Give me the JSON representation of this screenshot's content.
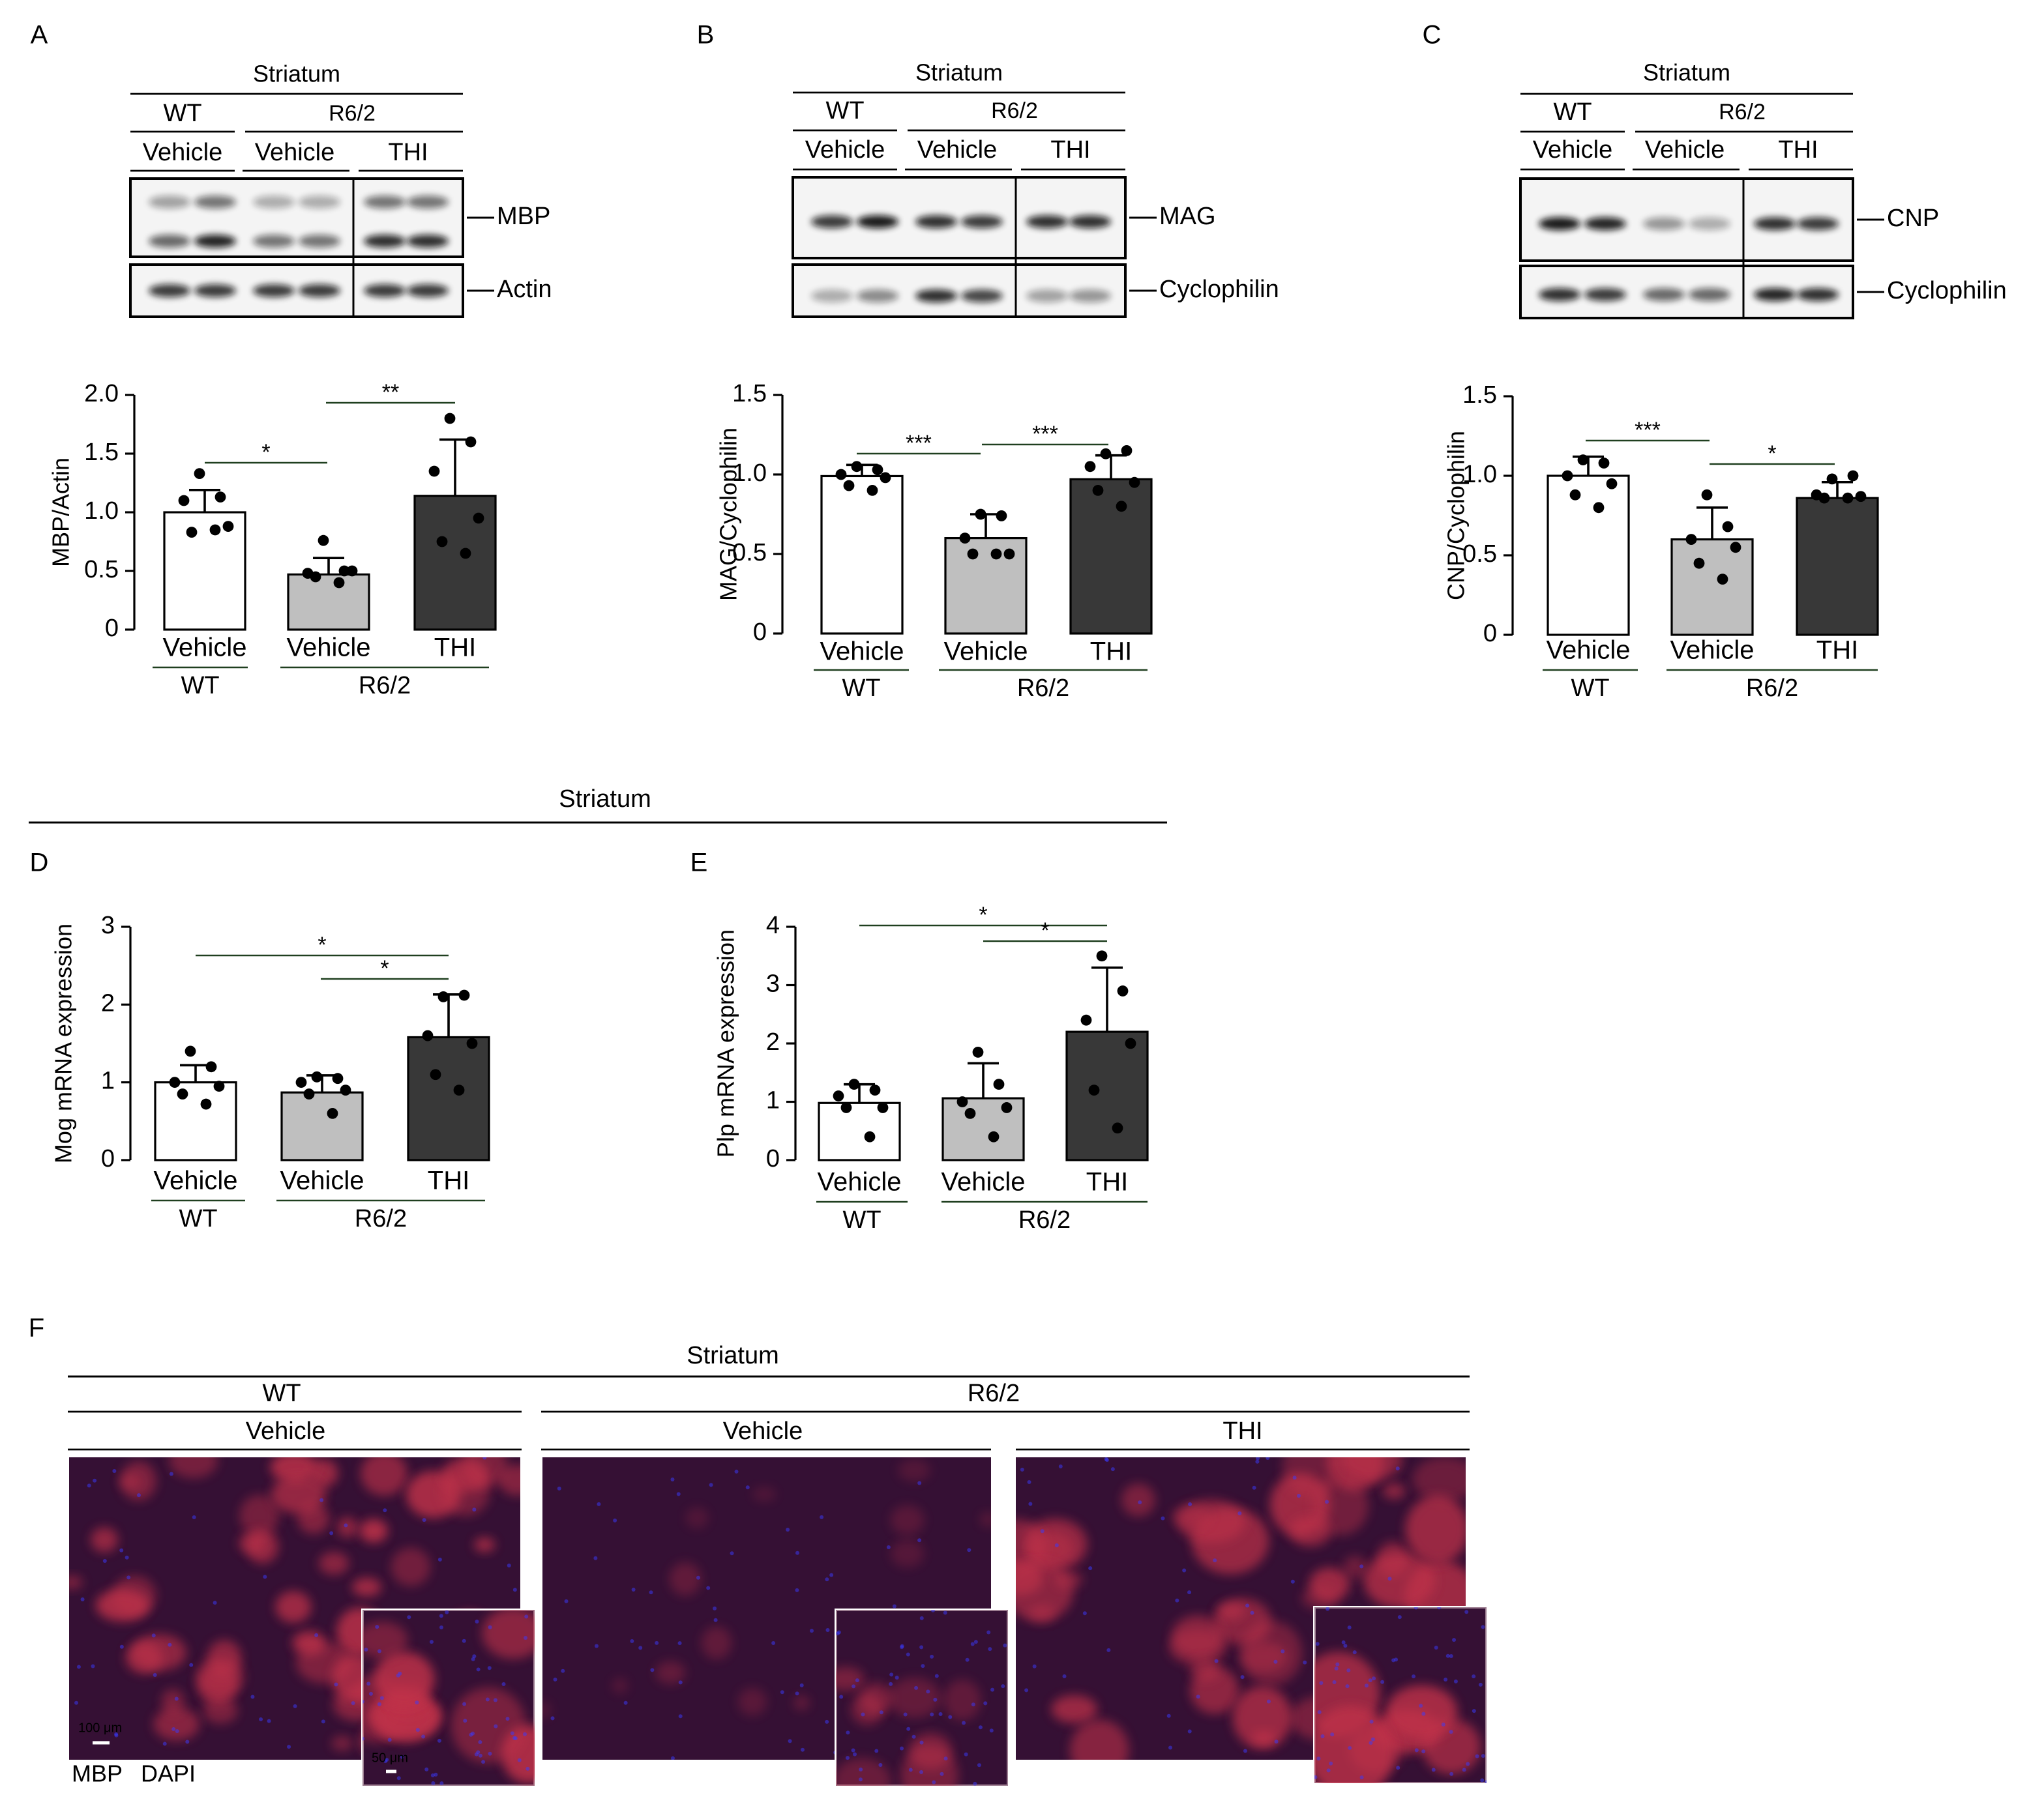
{
  "panels": {
    "labels": [
      "A",
      "B",
      "C",
      "D",
      "E",
      "F"
    ],
    "blots": [
      {
        "region": "Striatum",
        "genotypes": [
          "WT",
          "R6/2"
        ],
        "treatments": [
          "Vehicle",
          "Vehicle",
          "THI"
        ],
        "proteins": [
          "MBP",
          "Actin"
        ]
      },
      {
        "region": "Striatum",
        "genotypes": [
          "WT",
          "R6/2"
        ],
        "treatments": [
          "Vehicle",
          "Vehicle",
          "THI"
        ],
        "proteins": [
          "MAG",
          "Cyclophilin"
        ]
      },
      {
        "region": "Striatum",
        "genotypes": [
          "WT",
          "R6/2"
        ],
        "treatments": [
          "Vehicle",
          "Vehicle",
          "THI"
        ],
        "proteins": [
          "CNP",
          "Cyclophilin"
        ]
      }
    ],
    "mrna_region": "Striatum",
    "imaging": {
      "region": "Striatum",
      "genotypes": [
        "WT",
        "R6/2"
      ],
      "treatments": [
        "Vehicle",
        "Vehicle",
        "THI"
      ],
      "scale_bars": [
        "100 μm",
        "50 μm"
      ],
      "stains": [
        "MBP",
        "DAPI"
      ]
    }
  },
  "chart_data": [
    {
      "type": "bar",
      "y_label": "MBP/Actin",
      "categories": [
        "Vehicle",
        "Vehicle",
        "THI"
      ],
      "groups": [
        "WT",
        "R6/2"
      ],
      "values": [
        1.0,
        0.47,
        1.14
      ],
      "errors": [
        0.19,
        0.14,
        0.48
      ],
      "points": [
        [
          1.33,
          1.13,
          1.1,
          0.88,
          0.83,
          0.85
        ],
        [
          0.76,
          0.5,
          0.48,
          0.5,
          0.45,
          0.4
        ],
        [
          1.8,
          1.6,
          1.35,
          0.95,
          0.75,
          0.65
        ]
      ],
      "colors": [
        "#ffffff",
        "#bfbfbf",
        "#383838"
      ],
      "ylim": [
        0,
        2
      ],
      "yticks": [
        0,
        0.5,
        {
          "value": 1,
          "label": "1.0"
        },
        1.5,
        {
          "value": 2,
          "label": "2.0"
        }
      ],
      "annotations": [
        "*",
        "**"
      ]
    },
    {
      "type": "bar",
      "y_label": "MAG/Cyclophilin",
      "categories": [
        "Vehicle",
        "Vehicle",
        "THI"
      ],
      "groups": [
        "WT",
        "R6/2"
      ],
      "values": [
        0.99,
        0.6,
        0.97
      ],
      "errors": [
        0.07,
        0.15,
        0.15
      ],
      "points": [
        [
          1.05,
          1.03,
          1.0,
          0.98,
          0.93,
          0.9
        ],
        [
          0.75,
          0.74,
          0.6,
          0.5,
          0.5,
          0.5
        ],
        [
          1.13,
          1.15,
          1.05,
          0.95,
          0.9,
          0.8
        ]
      ],
      "colors": [
        "#ffffff",
        "#bfbfbf",
        "#383838"
      ],
      "ylim": [
        0,
        1.5
      ],
      "yticks": [
        0,
        0.5,
        {
          "value": 1,
          "label": "1.0"
        },
        1.5
      ],
      "annotations": [
        "***",
        "***"
      ]
    },
    {
      "type": "bar",
      "y_label": "CNP/Cyclophilin",
      "categories": [
        "Vehicle",
        "Vehicle",
        "THI"
      ],
      "groups": [
        "WT",
        "R6/2"
      ],
      "values": [
        1.0,
        0.6,
        0.86
      ],
      "errors": [
        0.12,
        0.2,
        0.1
      ],
      "points": [
        [
          1.1,
          1.08,
          1.0,
          0.95,
          0.88,
          0.8
        ],
        [
          0.88,
          0.68,
          0.6,
          0.55,
          0.45,
          0.35
        ],
        [
          0.98,
          1.0,
          0.88,
          0.87,
          0.86,
          0.86
        ]
      ],
      "colors": [
        "#ffffff",
        "#bfbfbf",
        "#383838"
      ],
      "ylim": [
        0,
        1.5
      ],
      "yticks": [
        0,
        0.5,
        {
          "value": 1,
          "label": "1.0"
        },
        1.5
      ],
      "annotations": [
        "***",
        "*"
      ]
    },
    {
      "type": "bar",
      "y_label": "Mog mRNA expression",
      "categories": [
        "Vehicle",
        "Vehicle",
        "THI"
      ],
      "groups": [
        "WT",
        "R6/2"
      ],
      "values": [
        1.0,
        0.87,
        1.58
      ],
      "errors": [
        0.22,
        0.22,
        0.55
      ],
      "points": [
        [
          1.4,
          1.2,
          1.0,
          0.95,
          0.85,
          0.72
        ],
        [
          1.07,
          1.05,
          1.0,
          0.9,
          0.85,
          0.6
        ],
        [
          2.1,
          2.12,
          1.6,
          1.5,
          1.1,
          0.9
        ]
      ],
      "colors": [
        "#ffffff",
        "#bfbfbf",
        "#383838"
      ],
      "ylim": [
        0,
        3
      ],
      "yticks": [
        0,
        1,
        2,
        3
      ],
      "annotations": [
        "*",
        "*"
      ]
    },
    {
      "type": "bar",
      "y_label": "Plp mRNA expression",
      "categories": [
        "Vehicle",
        "Vehicle",
        "THI"
      ],
      "groups": [
        "WT",
        "R6/2"
      ],
      "values": [
        0.98,
        1.06,
        2.2
      ],
      "errors": [
        0.32,
        0.6,
        1.1
      ],
      "points": [
        [
          1.3,
          1.2,
          1.1,
          0.9,
          0.9,
          0.4
        ],
        [
          1.85,
          1.3,
          1.0,
          0.9,
          0.8,
          0.4
        ],
        [
          3.5,
          2.9,
          2.4,
          2.0,
          1.2,
          0.55
        ]
      ],
      "colors": [
        "#ffffff",
        "#bfbfbf",
        "#383838"
      ],
      "ylim": [
        0,
        4
      ],
      "yticks": [
        0,
        1,
        2,
        3,
        4
      ],
      "annotations": [
        "*",
        "*"
      ]
    }
  ]
}
